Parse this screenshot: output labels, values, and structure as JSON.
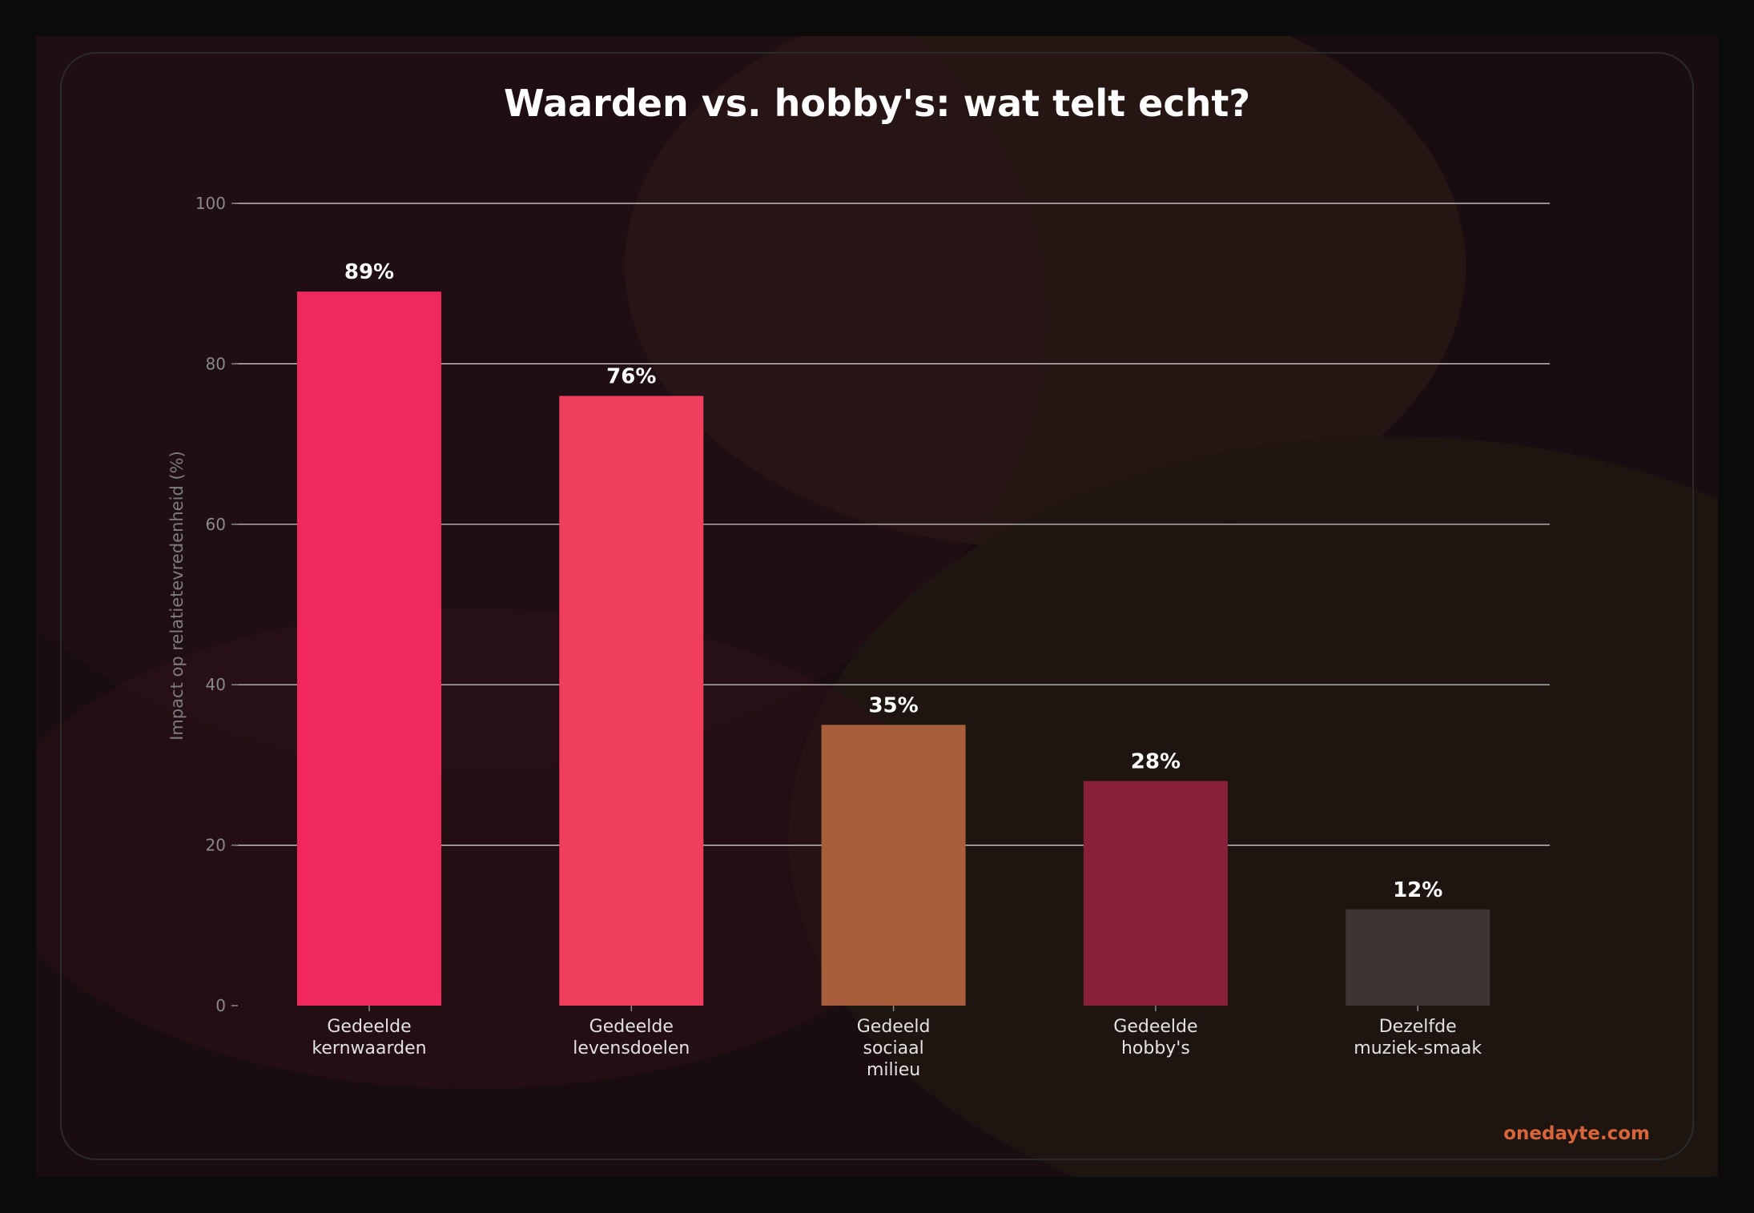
{
  "chart_data": {
    "type": "bar",
    "title": "Waarden vs. hobby's: wat telt echt?",
    "ylabel": "Impact op relatietevredenheid (%)",
    "xlabel": "",
    "ylim": [
      0,
      100
    ],
    "yticks": [
      0,
      20,
      40,
      60,
      80,
      100
    ],
    "grid": true,
    "categories": [
      [
        "Gedeelde",
        "kernwaarden"
      ],
      [
        "Gedeelde",
        "levensdoelen"
      ],
      [
        "Gedeeld",
        "sociaal",
        "milieu"
      ],
      [
        "Gedeelde",
        "hobby's"
      ],
      [
        "Dezelfde",
        "muziek-smaak"
      ]
    ],
    "values": [
      89,
      76,
      35,
      28,
      12
    ],
    "data_labels": [
      "89%",
      "76%",
      "35%",
      "28%",
      "12%"
    ],
    "bar_colors": [
      "#f0285e",
      "#f03f5e",
      "#a85e3a",
      "#8a1f3c",
      "#3b3432"
    ]
  },
  "watermark": "onedayte.com",
  "colors": {
    "background": "#0b0b0b",
    "panel": "#1d0f13",
    "title": "#ffffff",
    "tick": "#8a8a8a",
    "grid": "#ffffff",
    "category_label": "#e2e2e2",
    "watermark": "#d9663a"
  }
}
